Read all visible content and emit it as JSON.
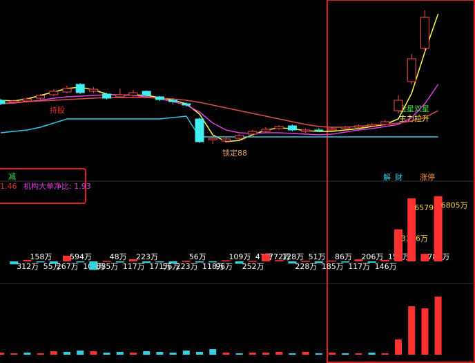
{
  "chart_data": [
    {
      "type": "candlestick",
      "ylim": [
        0,
        260
      ],
      "open": [
        115,
        112,
        114,
        118,
        123,
        127,
        138,
        128,
        124,
        120,
        122,
        128,
        120,
        115,
        110,
        88,
        58,
        56,
        60,
        66,
        70,
        74,
        78,
        70,
        72,
        72,
        74,
        76,
        78,
        80,
        100,
        142,
        190,
        null
      ],
      "close": [
        110,
        114,
        117,
        122,
        128,
        132,
        126,
        131,
        118,
        123,
        126,
        122,
        116,
        113,
        108,
        55,
        60,
        59,
        64,
        70,
        73,
        77,
        72,
        72,
        71,
        74,
        76,
        78,
        80,
        84,
        115,
        175,
        235,
        null
      ],
      "high": [
        117,
        116,
        119,
        124,
        131,
        136,
        140,
        134,
        126,
        132,
        130,
        129,
        121,
        117,
        112,
        90,
        62,
        63,
        66,
        72,
        76,
        79,
        80,
        74,
        75,
        76,
        78,
        80,
        82,
        86,
        122,
        182,
        245,
        null
      ],
      "low": [
        108,
        110,
        112,
        116,
        121,
        125,
        124,
        125,
        116,
        118,
        119,
        120,
        114,
        110,
        106,
        53,
        52,
        54,
        58,
        64,
        68,
        72,
        70,
        68,
        69,
        70,
        72,
        74,
        76,
        78,
        96,
        138,
        185,
        null
      ],
      "series": [
        {
          "color": "#ffff44",
          "values": [
            115,
            114,
            117,
            122,
            127,
            132,
            134,
            130,
            124,
            122,
            123,
            122,
            119,
            115,
            110,
            95,
            65,
            55,
            57,
            65,
            72,
            75,
            74,
            71,
            70,
            70,
            72,
            74,
            77,
            80,
            88,
            125,
            185,
            240
          ]
        },
        {
          "color": "#e040e0",
          "values": [
            110,
            111,
            113,
            115,
            118,
            120,
            121,
            122,
            123,
            123,
            122,
            120,
            117,
            113,
            108,
            98,
            82,
            72,
            68,
            67,
            68,
            68,
            67,
            66,
            65,
            66,
            69,
            72,
            74,
            77,
            80,
            90,
            110,
            138
          ]
        },
        {
          "color": "#e0504a",
          "values": [
            110,
            112,
            113,
            114,
            115,
            116,
            117,
            118,
            119,
            119,
            119,
            119,
            118,
            117,
            115,
            112,
            108,
            104,
            100,
            96,
            92,
            88,
            84,
            80,
            77,
            76,
            76,
            77,
            79,
            80,
            82,
            85,
            90,
            100
          ]
        },
        {
          "color": "#33c8e8",
          "values": [
            68,
            70,
            72,
            76,
            82,
            88,
            88,
            88,
            88,
            88,
            88,
            88,
            88,
            90,
            92,
            62,
            62,
            62,
            62,
            62,
            62,
            62,
            62,
            62,
            62,
            62,
            62,
            62,
            62,
            62,
            62,
            62,
            62,
            62
          ]
        }
      ],
      "annotations": [
        "持股",
        "锁定88",
        "金星双星",
        "主力拉升"
      ]
    },
    {
      "type": "bar",
      "values": [
        null,
        312,
        158,
        55,
        267,
        594,
        108,
        885,
        48,
        117,
        223,
        171,
        56,
        223,
        56,
        118,
        96,
        109,
        252,
        47,
        772,
        128,
        228,
        51,
        185,
        86,
        117,
        206,
        146,
        155,
        3346,
        6579,
        785,
        6805
      ],
      "value_labels": [
        null,
        "312万",
        "158万",
        "55万",
        "267万",
        "594万",
        "108万",
        "885万",
        "48万",
        "117万",
        "223万",
        "171万",
        "56万",
        "223万",
        "56万",
        "118万",
        "96万",
        "109万",
        "252万",
        "47万",
        "772万",
        "128万",
        "228万",
        "51万",
        "185万",
        "86万",
        "117万",
        "206万",
        "146万",
        "155万",
        "3346万",
        "6579万",
        "785万",
        "6805万"
      ],
      "colors": [
        "#000",
        "#33d0e0",
        "#ff3030",
        "#33d0e0",
        "#33d0e0",
        "#ff3030",
        "#33d0e0",
        "#33d0e0",
        "#ff3030",
        "#33d0e0",
        "#ff3030",
        "#33d0e0",
        "#33d0e0",
        "#33d0e0",
        "#ff3030",
        "#33d0e0",
        "#33d0e0",
        "#ff3030",
        "#33d0e0",
        "#ff3030",
        "#ff3030",
        "#ff3030",
        "#33d0e0",
        "#ff3030",
        "#33d0e0",
        "#ff3030",
        "#33d0e0",
        "#ff3030",
        "#33d0e0",
        "#ff3030",
        "#ff3030",
        "#ff3030",
        "#ff3030",
        "#ff3030"
      ],
      "ylim": [
        0,
        7000
      ],
      "tags": [
        "减",
        "解",
        "财",
        "涨停"
      ],
      "info": [
        "1.46",
        "机构大单净比: 1.93"
      ]
    },
    {
      "type": "bar",
      "values": [
        3,
        2,
        3,
        2,
        5,
        4,
        6,
        5,
        3,
        4,
        3,
        5,
        4,
        3,
        6,
        4,
        8,
        3,
        2,
        3,
        3,
        4,
        2,
        4,
        2,
        3,
        2,
        2,
        3,
        2,
        22,
        70,
        67,
        84
      ],
      "colors": [
        "#ff3030",
        "#ff3030",
        "#33d0e0",
        "#ff3030",
        "#ff3030",
        "#33d0e0",
        "#33d0e0",
        "#ff3030",
        "#33d0e0",
        "#33d0e0",
        "#ff3030",
        "#33d0e0",
        "#33d0e0",
        "#33d0e0",
        "#33d0e0",
        "#33d0e0",
        "#33d0e0",
        "#ff3030",
        "#33d0e0",
        "#ff3030",
        "#ff3030",
        "#ff3030",
        "#33d0e0",
        "#ff3030",
        "#33d0e0",
        "#ff3030",
        "#33d0e0",
        "#ff3030",
        "#33d0e0",
        "#ff3030",
        "#ff3030",
        "#ff3030",
        "#ff3030",
        "#ff3030"
      ],
      "ylim": [
        0,
        100
      ]
    }
  ]
}
